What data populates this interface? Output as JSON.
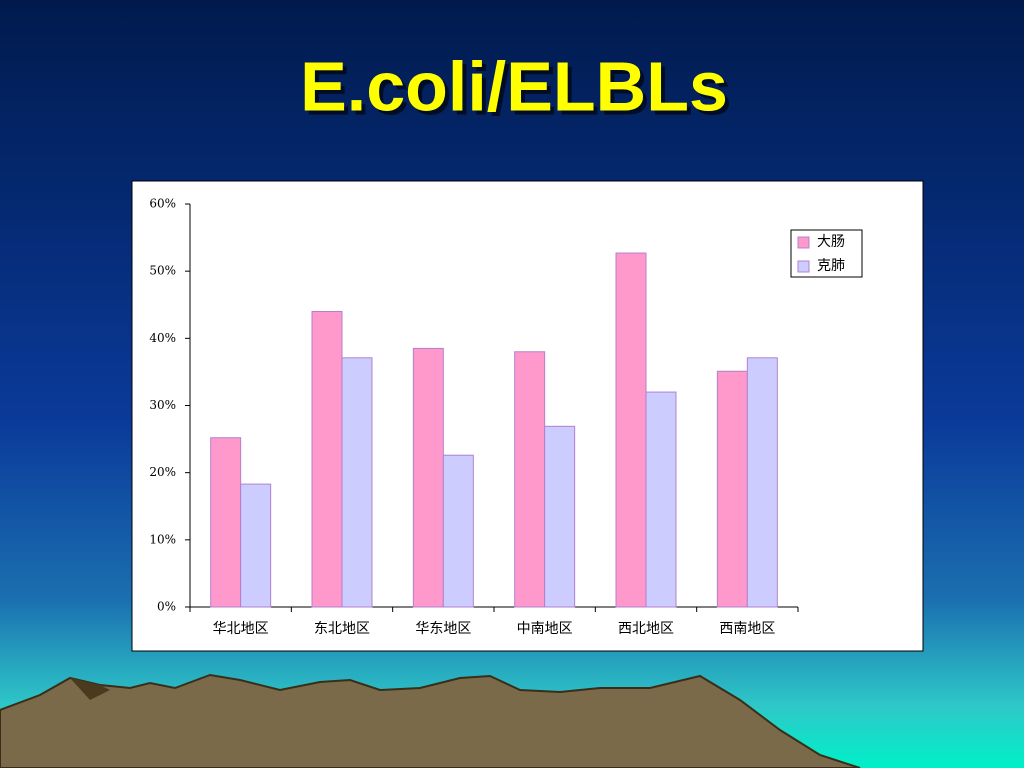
{
  "chart_data": {
    "type": "bar",
    "title": "E.coli/ELBLs",
    "categories": [
      "华北地区",
      "东北地区",
      "华东地区",
      "中南地区",
      "西北地区",
      "西南地区"
    ],
    "series": [
      {
        "name": "大肠",
        "color": "#ff99cc",
        "values": [
          25.2,
          44,
          38.5,
          38,
          52.7,
          35.1
        ]
      },
      {
        "name": "克肺",
        "color": "#ccccff",
        "values": [
          18.3,
          37.1,
          22.6,
          26.9,
          32,
          37.1
        ]
      }
    ],
    "ylim": [
      0,
      60
    ],
    "yticks": [
      {
        "value": 0,
        "label": "0%"
      },
      {
        "value": 10,
        "label": "10%"
      },
      {
        "value": 20,
        "label": "20%"
      },
      {
        "value": 30,
        "label": "30%"
      },
      {
        "value": 40,
        "label": "40%"
      },
      {
        "value": 50,
        "label": "50%"
      },
      {
        "value": 60,
        "label": "60%"
      }
    ],
    "legend": "upper right"
  }
}
